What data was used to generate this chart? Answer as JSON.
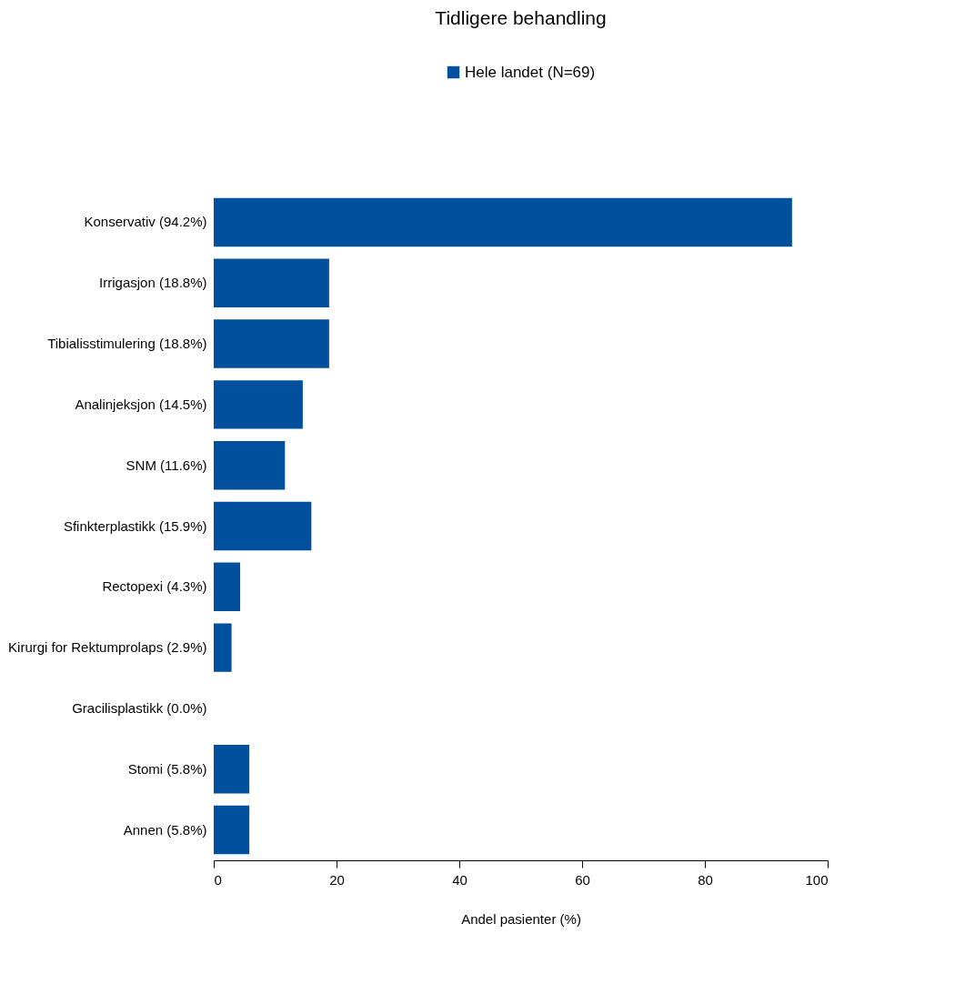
{
  "chart_data": {
    "type": "bar",
    "orientation": "horizontal",
    "title": "Tidligere behandling",
    "xlabel": "Andel pasienter (%)",
    "categories": [
      "Konservativ (94.2%)",
      "Irrigasjon (18.8%)",
      "Tibialisstimulering (18.8%)",
      "Analinjeksjon (14.5%)",
      "SNM (11.6%)",
      "Sfinkterplastikk (15.9%)",
      "Rectopexi (4.3%)",
      "Kirurgi for Rektumprolaps (2.9%)",
      "Gracilisplastikk (0.0%)",
      "Stomi (5.8%)",
      "Annen (5.8%)"
    ],
    "series": [
      {
        "name": "Hele landet (N=69)",
        "color": "#00509e",
        "values": [
          94.2,
          18.8,
          18.8,
          14.5,
          11.6,
          15.9,
          4.3,
          2.9,
          0.0,
          5.8,
          5.8
        ]
      }
    ],
    "xlim": [
      0,
      100
    ],
    "xticks": [
      0,
      20,
      40,
      60,
      80,
      100
    ],
    "legend": "top",
    "grid": false
  }
}
